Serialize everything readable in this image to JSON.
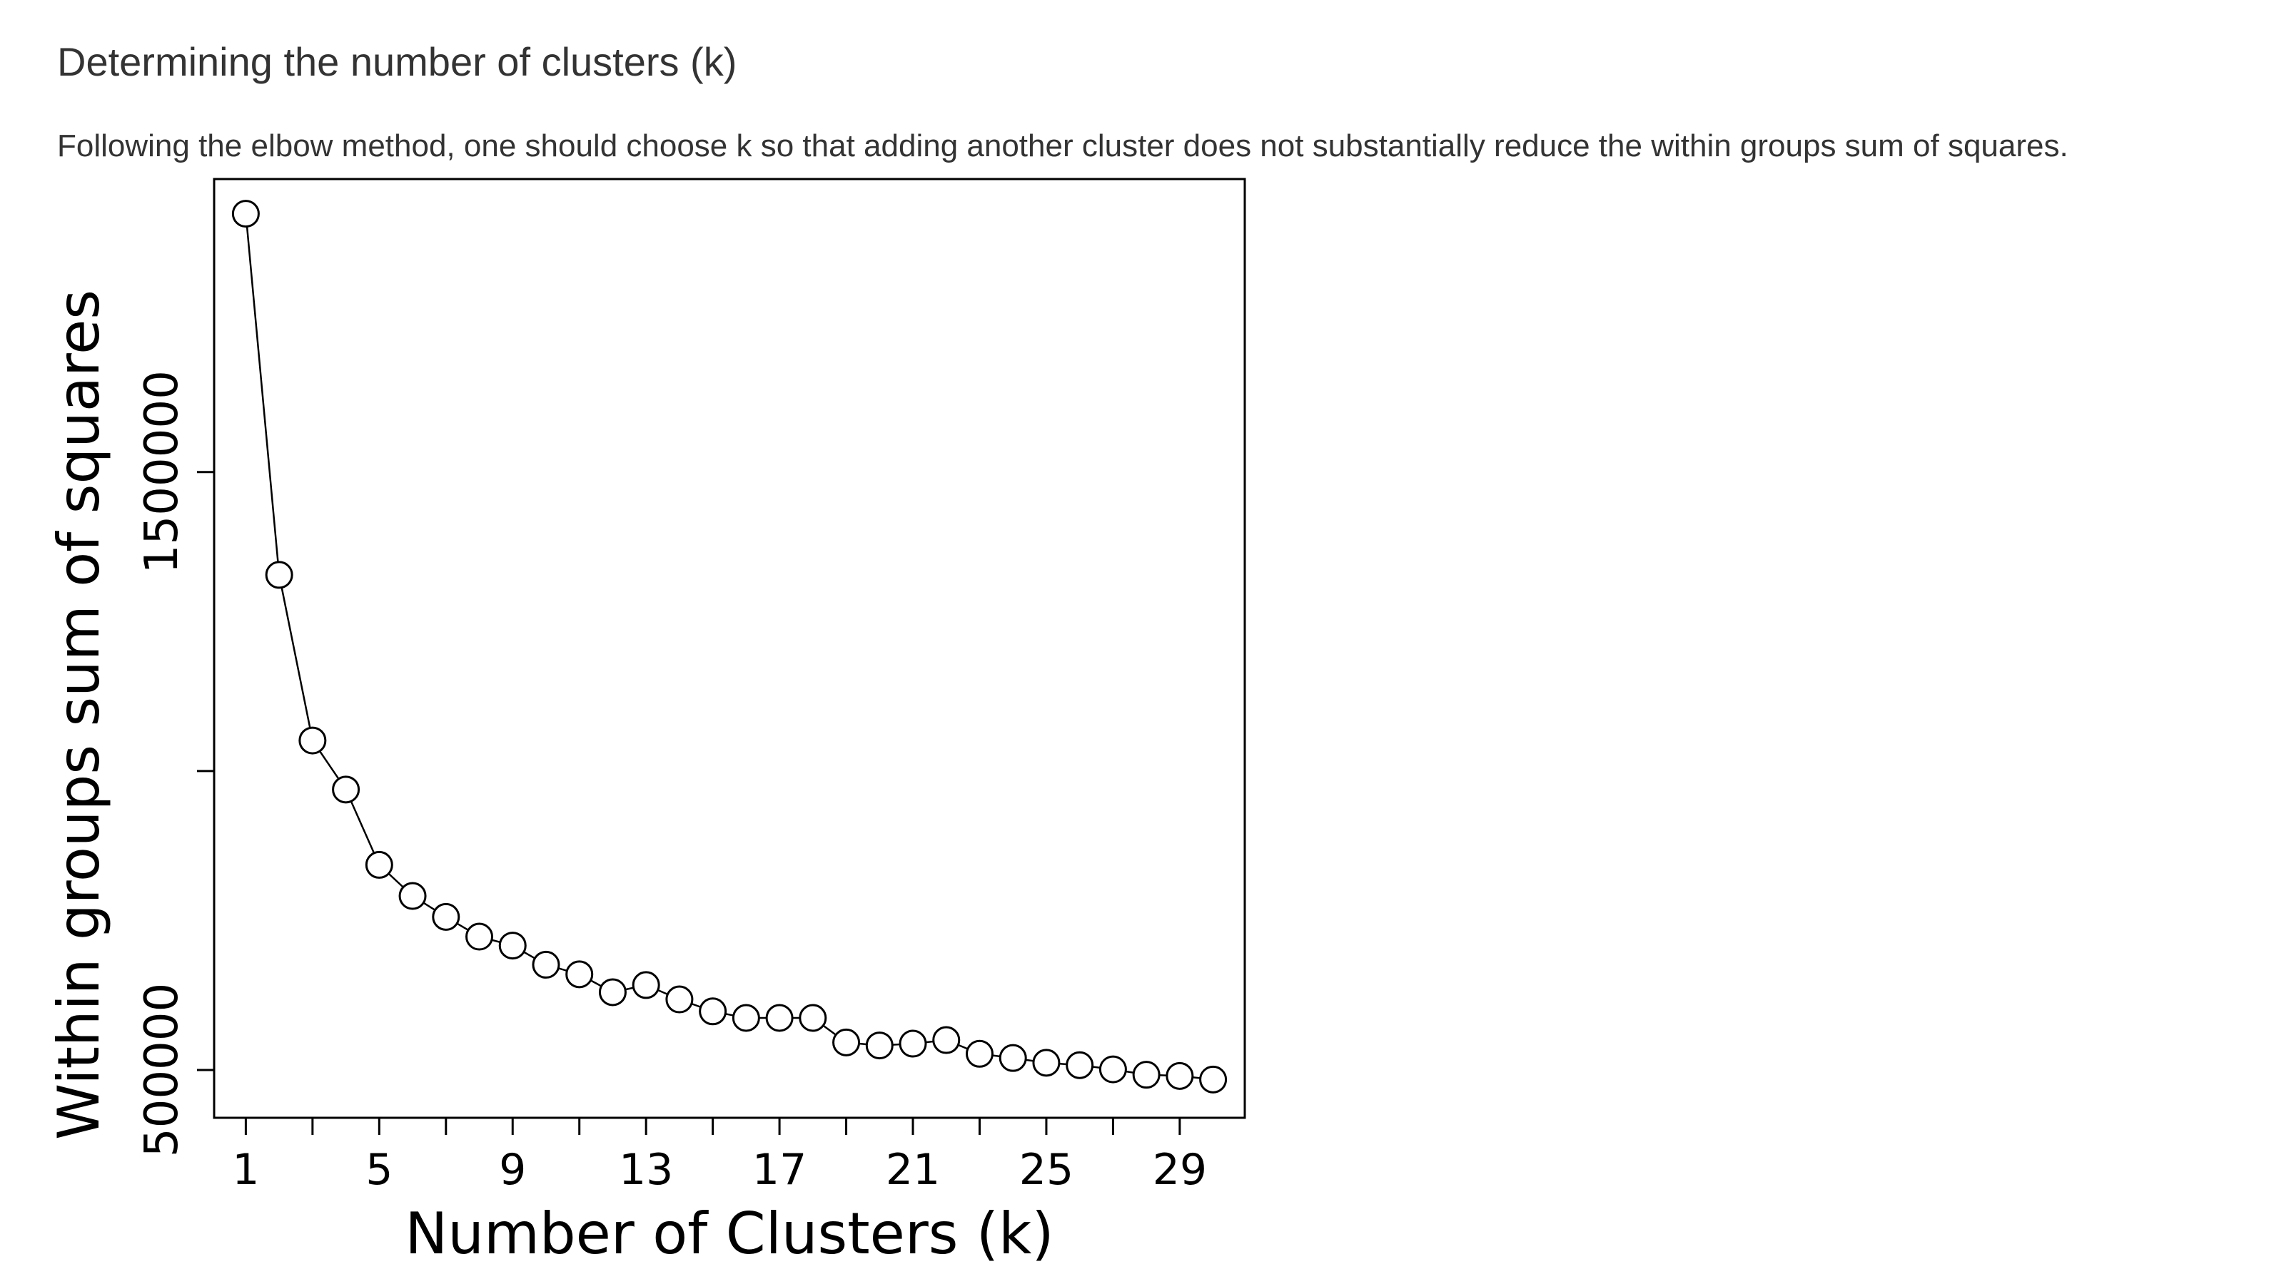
{
  "page": {
    "title": "Determining the number of clusters (k)",
    "description": "Following the elbow method, one should choose k so that adding another cluster does not substantially reduce the within groups sum of squares."
  },
  "chart_data": {
    "type": "line",
    "markers": "open-circle",
    "xlabel": "Number of Clusters (k)",
    "ylabel": "Within groups sum of squares",
    "xlim": [
      0.05,
      30.95
    ],
    "ylim": [
      420000,
      1990000
    ],
    "xticks": [
      1,
      3,
      5,
      7,
      9,
      11,
      13,
      15,
      17,
      19,
      21,
      23,
      25,
      27,
      29
    ],
    "xtick_labels": [
      "1",
      "",
      "5",
      "",
      "9",
      "",
      "13",
      "",
      "17",
      "",
      "21",
      "",
      "25",
      "",
      "29"
    ],
    "yticks": [
      500000,
      1000000,
      1500000
    ],
    "ytick_labels": [
      "500000",
      "",
      "1500000"
    ],
    "x": [
      1,
      2,
      3,
      4,
      5,
      6,
      7,
      8,
      9,
      10,
      11,
      12,
      13,
      14,
      15,
      16,
      17,
      18,
      19,
      20,
      21,
      22,
      23,
      24,
      25,
      26,
      27,
      28,
      29,
      30
    ],
    "y": [
      1932000,
      1328000,
      1051000,
      969000,
      843000,
      791000,
      756000,
      723000,
      708000,
      676000,
      660000,
      630000,
      642000,
      618000,
      598000,
      587000,
      587000,
      587000,
      546000,
      541000,
      544000,
      550000,
      527000,
      520000,
      512000,
      508000,
      501000,
      492000,
      490000,
      484000
    ],
    "grid": false,
    "legend": "none"
  }
}
